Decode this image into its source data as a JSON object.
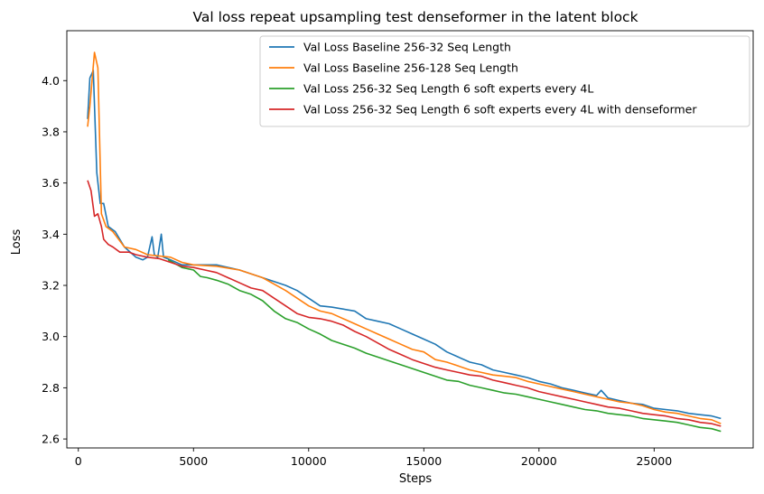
{
  "chart_data": {
    "type": "line",
    "title": "Val loss repeat upsampling test denseformer in the latent block",
    "xlabel": "Steps",
    "ylabel": "Loss",
    "xlim": [
      -500,
      29300
    ],
    "ylim": [
      2.565,
      4.195
    ],
    "xticks": [
      0,
      5000,
      10000,
      15000,
      20000,
      25000
    ],
    "xtick_labels": [
      "0",
      "5000",
      "10000",
      "15000",
      "20000",
      "25000"
    ],
    "yticks": [
      2.6,
      2.8,
      3.0,
      3.2,
      3.4,
      3.6,
      3.8,
      4.0
    ],
    "ytick_labels": [
      "2.6",
      "2.8",
      "3.0",
      "3.2",
      "3.4",
      "3.6",
      "3.8",
      "4.0"
    ],
    "grid": false,
    "legend_position": "upper right",
    "series": [
      {
        "name": "Val Loss Baseline 256-32 Seq Length",
        "color": "#1f77b4",
        "points": [
          [
            400,
            3.85
          ],
          [
            500,
            4.01
          ],
          [
            650,
            4.04
          ],
          [
            800,
            3.64
          ],
          [
            950,
            3.52
          ],
          [
            1100,
            3.52
          ],
          [
            1300,
            3.43
          ],
          [
            1600,
            3.41
          ],
          [
            2000,
            3.35
          ],
          [
            2500,
            3.31
          ],
          [
            2800,
            3.3
          ],
          [
            3000,
            3.31
          ],
          [
            3200,
            3.39
          ],
          [
            3300,
            3.32
          ],
          [
            3450,
            3.31
          ],
          [
            3600,
            3.4
          ],
          [
            3700,
            3.31
          ],
          [
            4000,
            3.3
          ],
          [
            4500,
            3.28
          ],
          [
            5000,
            3.28
          ],
          [
            6000,
            3.28
          ],
          [
            7000,
            3.26
          ],
          [
            8000,
            3.23
          ],
          [
            9000,
            3.2
          ],
          [
            9500,
            3.18
          ],
          [
            10000,
            3.15
          ],
          [
            10500,
            3.12
          ],
          [
            11000,
            3.115
          ],
          [
            12000,
            3.1
          ],
          [
            12500,
            3.07
          ],
          [
            13000,
            3.06
          ],
          [
            13500,
            3.05
          ],
          [
            14000,
            3.03
          ],
          [
            14500,
            3.01
          ],
          [
            15000,
            2.99
          ],
          [
            15500,
            2.97
          ],
          [
            16000,
            2.94
          ],
          [
            16500,
            2.92
          ],
          [
            17000,
            2.9
          ],
          [
            17500,
            2.89
          ],
          [
            18000,
            2.87
          ],
          [
            18500,
            2.86
          ],
          [
            19000,
            2.85
          ],
          [
            19500,
            2.84
          ],
          [
            20000,
            2.825
          ],
          [
            20500,
            2.815
          ],
          [
            21000,
            2.8
          ],
          [
            21500,
            2.79
          ],
          [
            22000,
            2.78
          ],
          [
            22500,
            2.77
          ],
          [
            22700,
            2.79
          ],
          [
            23000,
            2.76
          ],
          [
            23500,
            2.75
          ],
          [
            24000,
            2.74
          ],
          [
            24500,
            2.735
          ],
          [
            25000,
            2.72
          ],
          [
            25500,
            2.715
          ],
          [
            26000,
            2.71
          ],
          [
            26500,
            2.7
          ],
          [
            27000,
            2.695
          ],
          [
            27500,
            2.69
          ],
          [
            27900,
            2.68
          ]
        ]
      },
      {
        "name": "Val Loss Baseline 256-128 Seq Length",
        "color": "#ff7f0e",
        "points": [
          [
            400,
            3.82
          ],
          [
            500,
            3.9
          ],
          [
            700,
            4.11
          ],
          [
            850,
            4.05
          ],
          [
            1000,
            3.48
          ],
          [
            1200,
            3.43
          ],
          [
            1500,
            3.41
          ],
          [
            2000,
            3.35
          ],
          [
            2500,
            3.34
          ],
          [
            3000,
            3.32
          ],
          [
            3500,
            3.315
          ],
          [
            4000,
            3.31
          ],
          [
            4500,
            3.29
          ],
          [
            5000,
            3.28
          ],
          [
            6000,
            3.275
          ],
          [
            7000,
            3.26
          ],
          [
            8000,
            3.23
          ],
          [
            9000,
            3.18
          ],
          [
            10000,
            3.12
          ],
          [
            10500,
            3.1
          ],
          [
            11000,
            3.09
          ],
          [
            12000,
            3.05
          ],
          [
            12500,
            3.03
          ],
          [
            13000,
            3.01
          ],
          [
            13500,
            2.99
          ],
          [
            14000,
            2.97
          ],
          [
            14500,
            2.95
          ],
          [
            15000,
            2.94
          ],
          [
            15500,
            2.91
          ],
          [
            16000,
            2.9
          ],
          [
            16500,
            2.885
          ],
          [
            17000,
            2.87
          ],
          [
            17500,
            2.86
          ],
          [
            18000,
            2.85
          ],
          [
            18500,
            2.845
          ],
          [
            19000,
            2.84
          ],
          [
            19500,
            2.825
          ],
          [
            20000,
            2.815
          ],
          [
            20500,
            2.805
          ],
          [
            21000,
            2.795
          ],
          [
            21500,
            2.785
          ],
          [
            22000,
            2.775
          ],
          [
            22500,
            2.765
          ],
          [
            23000,
            2.755
          ],
          [
            23500,
            2.745
          ],
          [
            24000,
            2.74
          ],
          [
            24500,
            2.73
          ],
          [
            25000,
            2.715
          ],
          [
            25500,
            2.705
          ],
          [
            26000,
            2.7
          ],
          [
            26500,
            2.69
          ],
          [
            27000,
            2.68
          ],
          [
            27500,
            2.675
          ],
          [
            27900,
            2.66
          ]
        ]
      },
      {
        "name": "Val Loss 256-32 Seq Length 6 soft experts every 4L",
        "color": "#2ca02c",
        "points": [
          [
            3900,
            3.3
          ],
          [
            4200,
            3.285
          ],
          [
            4500,
            3.27
          ],
          [
            5000,
            3.26
          ],
          [
            5300,
            3.235
          ],
          [
            5600,
            3.23
          ],
          [
            6000,
            3.22
          ],
          [
            6500,
            3.205
          ],
          [
            7000,
            3.18
          ],
          [
            7500,
            3.165
          ],
          [
            8000,
            3.14
          ],
          [
            8500,
            3.1
          ],
          [
            9000,
            3.07
          ],
          [
            9500,
            3.055
          ],
          [
            10000,
            3.03
          ],
          [
            10500,
            3.01
          ],
          [
            11000,
            2.985
          ],
          [
            11500,
            2.97
          ],
          [
            12000,
            2.955
          ],
          [
            12500,
            2.935
          ],
          [
            13000,
            2.92
          ],
          [
            13500,
            2.905
          ],
          [
            14000,
            2.89
          ],
          [
            14500,
            2.875
          ],
          [
            15000,
            2.86
          ],
          [
            15500,
            2.845
          ],
          [
            16000,
            2.83
          ],
          [
            16500,
            2.825
          ],
          [
            17000,
            2.81
          ],
          [
            17500,
            2.8
          ],
          [
            18000,
            2.79
          ],
          [
            18500,
            2.78
          ],
          [
            19000,
            2.775
          ],
          [
            19500,
            2.765
          ],
          [
            20000,
            2.755
          ],
          [
            20500,
            2.745
          ],
          [
            21000,
            2.735
          ],
          [
            21500,
            2.725
          ],
          [
            22000,
            2.715
          ],
          [
            22500,
            2.71
          ],
          [
            23000,
            2.7
          ],
          [
            23500,
            2.695
          ],
          [
            24000,
            2.69
          ],
          [
            24500,
            2.68
          ],
          [
            25000,
            2.675
          ],
          [
            25500,
            2.67
          ],
          [
            26000,
            2.665
          ],
          [
            26500,
            2.655
          ],
          [
            27000,
            2.645
          ],
          [
            27500,
            2.64
          ],
          [
            27900,
            2.63
          ]
        ]
      },
      {
        "name": "Val Loss 256-32 Seq Length 6 soft experts every 4L with denseformer",
        "color": "#d62728",
        "points": [
          [
            400,
            3.61
          ],
          [
            550,
            3.57
          ],
          [
            700,
            3.47
          ],
          [
            850,
            3.48
          ],
          [
            1000,
            3.43
          ],
          [
            1100,
            3.38
          ],
          [
            1300,
            3.36
          ],
          [
            1500,
            3.35
          ],
          [
            1800,
            3.33
          ],
          [
            2200,
            3.33
          ],
          [
            2500,
            3.32
          ],
          [
            3000,
            3.31
          ],
          [
            3500,
            3.305
          ],
          [
            4000,
            3.29
          ],
          [
            4500,
            3.275
          ],
          [
            5000,
            3.27
          ],
          [
            5500,
            3.26
          ],
          [
            6000,
            3.25
          ],
          [
            6500,
            3.23
          ],
          [
            7000,
            3.21
          ],
          [
            7500,
            3.19
          ],
          [
            8000,
            3.18
          ],
          [
            8500,
            3.15
          ],
          [
            9000,
            3.12
          ],
          [
            9500,
            3.09
          ],
          [
            10000,
            3.075
          ],
          [
            10500,
            3.07
          ],
          [
            11000,
            3.06
          ],
          [
            11500,
            3.045
          ],
          [
            12000,
            3.02
          ],
          [
            12500,
            3.0
          ],
          [
            13000,
            2.975
          ],
          [
            13500,
            2.95
          ],
          [
            14000,
            2.93
          ],
          [
            14500,
            2.91
          ],
          [
            15000,
            2.895
          ],
          [
            15500,
            2.88
          ],
          [
            16000,
            2.87
          ],
          [
            16500,
            2.86
          ],
          [
            17000,
            2.85
          ],
          [
            17500,
            2.845
          ],
          [
            18000,
            2.83
          ],
          [
            18500,
            2.82
          ],
          [
            19000,
            2.81
          ],
          [
            19500,
            2.8
          ],
          [
            20000,
            2.785
          ],
          [
            20500,
            2.775
          ],
          [
            21000,
            2.765
          ],
          [
            21500,
            2.755
          ],
          [
            22000,
            2.745
          ],
          [
            22500,
            2.735
          ],
          [
            23000,
            2.725
          ],
          [
            23500,
            2.72
          ],
          [
            24000,
            2.71
          ],
          [
            24500,
            2.7
          ],
          [
            25000,
            2.695
          ],
          [
            25500,
            2.69
          ],
          [
            26000,
            2.68
          ],
          [
            26500,
            2.675
          ],
          [
            27000,
            2.665
          ],
          [
            27500,
            2.66
          ],
          [
            27900,
            2.65
          ]
        ]
      }
    ]
  }
}
